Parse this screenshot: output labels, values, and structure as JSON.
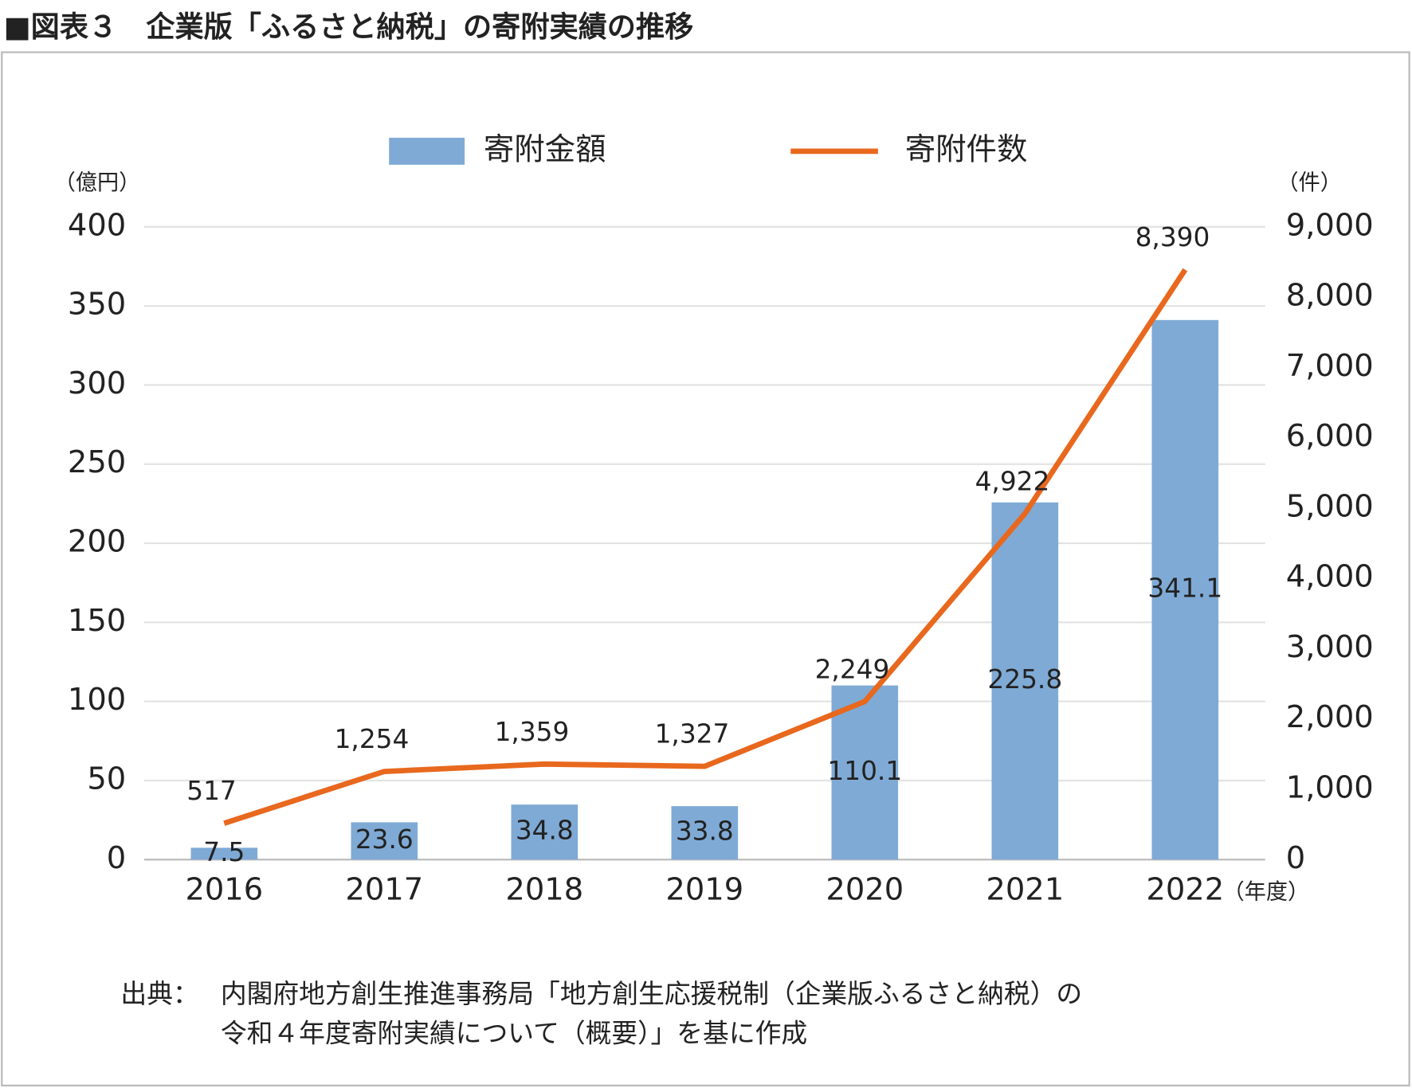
{
  "chart_data": {
    "type": "bar",
    "title": "■図表３　企業版「ふるさと納税」の寄附実績の推移",
    "y_unit": "（億円）",
    "y2_unit": "（件）",
    "x_unit": "（年度）",
    "categories": [
      "2016",
      "2017",
      "2018",
      "2019",
      "2020",
      "2021",
      "2022"
    ],
    "series": [
      {
        "name": "寄附金額",
        "type": "bar",
        "color": "#7faad5",
        "values": [
          7.5,
          23.6,
          34.8,
          33.8,
          110.1,
          225.8,
          341.1
        ]
      },
      {
        "name": "寄附件数",
        "type": "line",
        "axis": "y2",
        "color": "#e8681e",
        "values": [
          517,
          1254,
          1359,
          1327,
          2249,
          4922,
          8390
        ],
        "value_labels": [
          "517",
          "1,254",
          "1,359",
          "1,327",
          "2,249",
          "4,922",
          "8,390"
        ]
      }
    ],
    "ylim": [
      0,
      400
    ],
    "yticks": [
      0,
      50,
      100,
      150,
      200,
      250,
      300,
      350,
      400
    ],
    "y2lim": [
      0,
      9000
    ],
    "y2ticks": [
      0,
      {
        "value": 1000,
        "label": "1,000"
      },
      {
        "value": 2000,
        "label": "2,000"
      },
      {
        "value": 3000,
        "label": "3,000"
      },
      {
        "value": 4000,
        "label": "4,000"
      },
      {
        "value": 5000,
        "label": "5,000"
      },
      {
        "value": 6000,
        "label": "6,000"
      },
      {
        "value": 7000,
        "label": "7,000"
      },
      {
        "value": 8000,
        "label": "8,000"
      },
      {
        "value": 9000,
        "label": "9,000"
      }
    ],
    "grid": true,
    "source_label": "出典：",
    "source": [
      "内閣府地方創生推進事務局「地方創生応援税制（企業版ふるさと納税）の",
      "令和４年度寄附実績について（概要）」を基に作成"
    ]
  }
}
